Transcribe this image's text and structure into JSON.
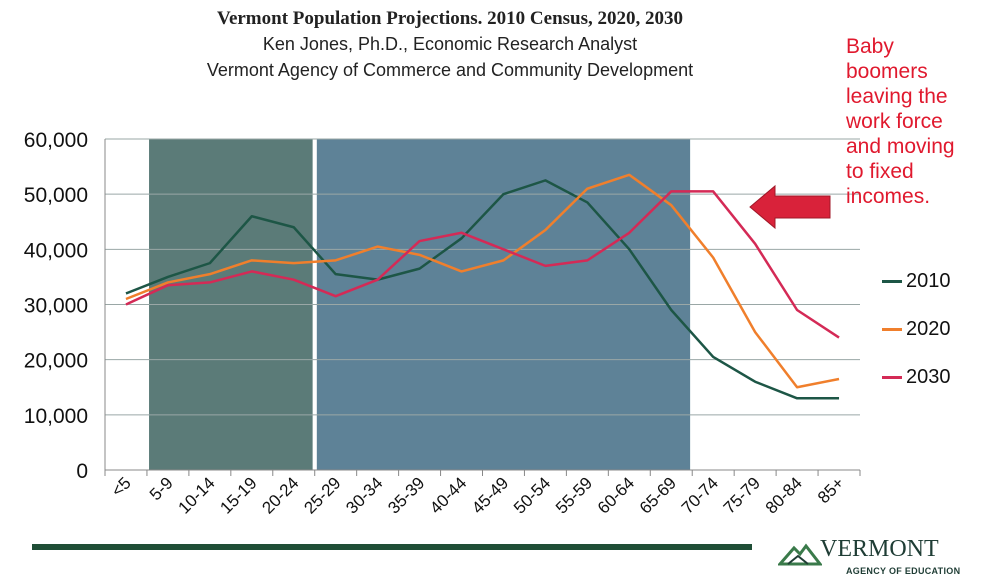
{
  "titles": {
    "line1": "Vermont Population Projections. 2010 Census, 2020, 2030",
    "line2": "Ken Jones, Ph.D., Economic Research Analyst",
    "line3": "Vermont Agency of Commerce and Community Development"
  },
  "annotation": {
    "text_lines": [
      "Baby",
      "boomers",
      "leaving the",
      "work force",
      "and moving",
      "to fixed",
      "incomes."
    ],
    "color": "#e0192e"
  },
  "logo": {
    "name": "VERMONT",
    "subtitle": "AGENCY OF EDUCATION"
  },
  "colors": {
    "shade_left": "#5b7b78",
    "shade_right": "#5e8297",
    "arrow": "#d9223a",
    "footer_line": "#1f4e36"
  },
  "chart_data": {
    "type": "line",
    "categories": [
      "<5",
      "5-9",
      "10-14",
      "15-19",
      "20-24",
      "25-29",
      "30-34",
      "35-39",
      "40-44",
      "45-49",
      "50-54",
      "55-59",
      "60-64",
      "65-69",
      "70-74",
      "75-79",
      "80-84",
      "85+"
    ],
    "series": [
      {
        "name": "2010",
        "color": "#1d5646",
        "values": [
          32000,
          35000,
          37500,
          46000,
          44000,
          35500,
          34500,
          36500,
          42000,
          50000,
          52500,
          48500,
          40000,
          29000,
          20500,
          16000,
          13000,
          13000
        ]
      },
      {
        "name": "2020",
        "color": "#f07f2c",
        "values": [
          31000,
          34000,
          35500,
          38000,
          37500,
          38000,
          40500,
          39000,
          36000,
          38000,
          43500,
          51000,
          53500,
          48000,
          38500,
          25000,
          15000,
          16500
        ]
      },
      {
        "name": "2030",
        "color": "#d42a56",
        "values": [
          30000,
          33500,
          34000,
          36000,
          34500,
          31500,
          34500,
          41500,
          43000,
          40000,
          37000,
          38000,
          43000,
          50500,
          50500,
          41000,
          29000,
          24000
        ]
      }
    ],
    "ylim": [
      0,
      60000
    ],
    "yticks": [
      "0",
      "10,000",
      "20,000",
      "30,000",
      "40,000",
      "50,000",
      "60,000"
    ],
    "grid": true,
    "shaded_category_ranges": [
      {
        "from": "5-9",
        "to": "20-24"
      },
      {
        "from": "25-29",
        "to": "65-69"
      }
    ],
    "legend_position": "right"
  }
}
